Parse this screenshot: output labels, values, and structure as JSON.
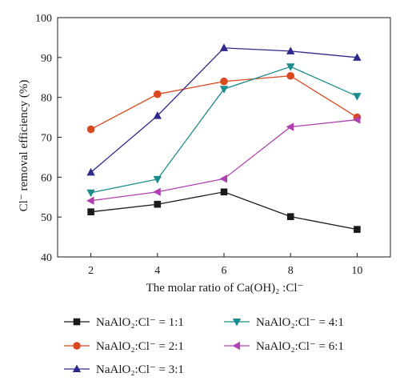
{
  "chart_data": {
    "type": "line",
    "xlabel": "The molar ratio of Ca(OH)₂ :Cl⁻",
    "ylabel": "Cl⁻ removal efficiency (%)",
    "x": [
      2,
      4,
      6,
      8,
      10
    ],
    "xticks": [
      "2",
      "4",
      "6",
      "8",
      "10"
    ],
    "xlim": [
      1,
      11
    ],
    "ylim": [
      40,
      100
    ],
    "yticks": [
      "40",
      "50",
      "60",
      "70",
      "80",
      "90",
      "100"
    ],
    "legend_position": "bottom",
    "series": [
      {
        "name": "NaAlO₂:Cl⁻ = 1:1",
        "marker": "square",
        "color": "#1a1a1a",
        "values": [
          51.3,
          53.2,
          56.3,
          50.1,
          46.9
        ]
      },
      {
        "name": "NaAlO₂:Cl⁻ = 2:1",
        "marker": "circle",
        "color": "#d9481f",
        "values": [
          72.0,
          80.8,
          84.0,
          85.4,
          75.0
        ]
      },
      {
        "name": "NaAlO₂:Cl⁻ = 3:1",
        "marker": "triangle-up",
        "color": "#2e2a8c",
        "values": [
          61.2,
          75.4,
          92.4,
          91.6,
          90.0
        ]
      },
      {
        "name": "NaAlO₂:Cl⁻ = 4:1",
        "marker": "triangle-down",
        "color": "#1a8c8c",
        "values": [
          56.1,
          59.5,
          82.1,
          87.7,
          80.3
        ]
      },
      {
        "name": "NaAlO₂:Cl⁻ = 6:1",
        "marker": "triangle-left",
        "color": "#b03fb0",
        "values": [
          54.1,
          56.3,
          59.6,
          72.6,
          74.4
        ]
      }
    ]
  }
}
